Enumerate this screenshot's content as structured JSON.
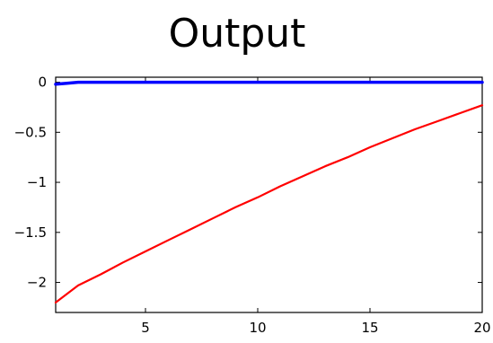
{
  "chart_data": {
    "type": "line",
    "title": "Output",
    "xlabel": "",
    "ylabel": "",
    "xlim": [
      1,
      20
    ],
    "ylim": [
      -2.3,
      0.05
    ],
    "xticks": [
      5,
      10,
      15,
      20
    ],
    "xtick_labels": [
      "5",
      "10",
      "15",
      "20"
    ],
    "yticks": [
      0,
      -0.5,
      -1,
      -1.5,
      -2
    ],
    "ytick_labels": [
      "0",
      "−0.5",
      "−1",
      "−1.5",
      "−2"
    ],
    "grid": false,
    "legend": false,
    "series": [
      {
        "color": "#0000ff",
        "x": [
          1,
          1.5,
          2,
          3,
          4,
          5,
          6,
          7,
          8,
          9,
          10,
          11,
          12,
          13,
          14,
          15,
          16,
          17,
          18,
          19,
          20
        ],
        "y": [
          -0.02,
          -0.01,
          0,
          0,
          0,
          0,
          0,
          0,
          0,
          0,
          0,
          0,
          0,
          0,
          0,
          0,
          0,
          0,
          0,
          0,
          0
        ]
      },
      {
        "color": "#ff0000",
        "x": [
          1,
          2,
          3,
          4,
          5,
          6,
          7,
          8,
          9,
          10,
          11,
          12,
          13,
          14,
          15,
          16,
          17,
          18,
          19,
          20
        ],
        "y": [
          -2.2,
          -2.03,
          -1.92,
          -1.8,
          -1.69,
          -1.58,
          -1.47,
          -1.36,
          -1.25,
          -1.15,
          -1.04,
          -0.94,
          -0.84,
          -0.75,
          -0.65,
          -0.56,
          -0.47,
          -0.39,
          -0.31,
          -0.23
        ]
      }
    ]
  }
}
